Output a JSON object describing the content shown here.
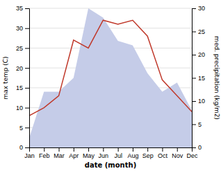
{
  "chart_data": {
    "type": "line",
    "categories": [
      "Jan",
      "Feb",
      "Mar",
      "Apr",
      "May",
      "Jun",
      "Jul",
      "Aug",
      "Sep",
      "Oct",
      "Nov",
      "Dec"
    ],
    "xlabel": "date (month)",
    "ylabel": "max temp (C)",
    "y2label": "med. precipitation (kg/m2)",
    "series": [
      {
        "type": "area",
        "axis": "y2",
        "color": "#c5cce8",
        "values": [
          2,
          12,
          12,
          15,
          30,
          28,
          23,
          22,
          16,
          12,
          14,
          8
        ]
      },
      {
        "type": "line",
        "color": "#c0392b",
        "values": [
          8,
          10,
          13,
          27,
          25,
          32,
          31,
          32,
          28,
          17,
          13,
          9
        ]
      }
    ],
    "ylim": [
      0,
      35
    ],
    "yticks": [
      0,
      5,
      10,
      15,
      20,
      25,
      30,
      35
    ],
    "y2lim": [
      0,
      30
    ],
    "y2ticks": [
      0,
      5,
      10,
      15,
      20,
      25,
      30
    ],
    "grid": true
  }
}
